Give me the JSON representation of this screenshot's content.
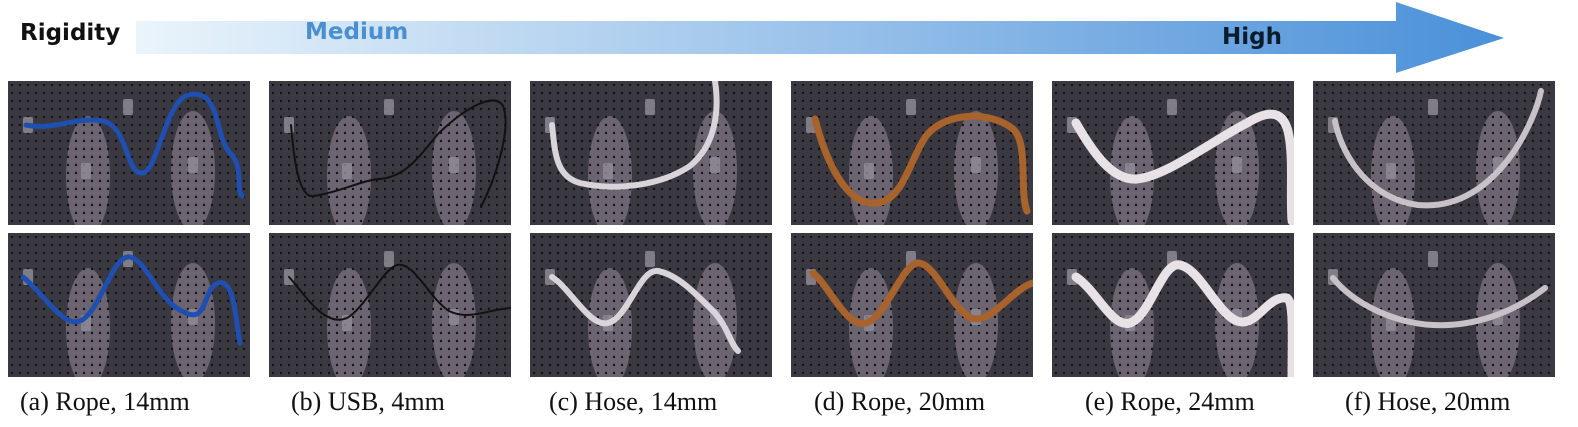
{
  "header": {
    "rigidity_label": "Rigidity",
    "medium_label": "Medium",
    "high_label": "High",
    "arrow_color_start": "#eaf4fb",
    "arrow_color_end": "#4a90d9"
  },
  "board": {
    "background": "#3a3840",
    "hole_color": "#121115",
    "glow_color": "#f2d7ec"
  },
  "captions": [
    "(a) Rope, 14mm",
    "(b) USB, 4mm",
    "(c) Hose, 14mm",
    "(d) Rope, 20mm",
    "(e) Rope, 24mm",
    "(f) Hose, 20mm"
  ],
  "cables": [
    {
      "name": "rope-14mm",
      "color": "#1f4fb0"
    },
    {
      "name": "usb-4mm",
      "color": "#111111"
    },
    {
      "name": "hose-14mm",
      "color": "#d9d3da"
    },
    {
      "name": "rope-20mm",
      "color": "#a8622c"
    },
    {
      "name": "rope-24mm",
      "color": "#e8e2e6"
    },
    {
      "name": "hose-20mm",
      "color": "#c9c1c8"
    }
  ]
}
